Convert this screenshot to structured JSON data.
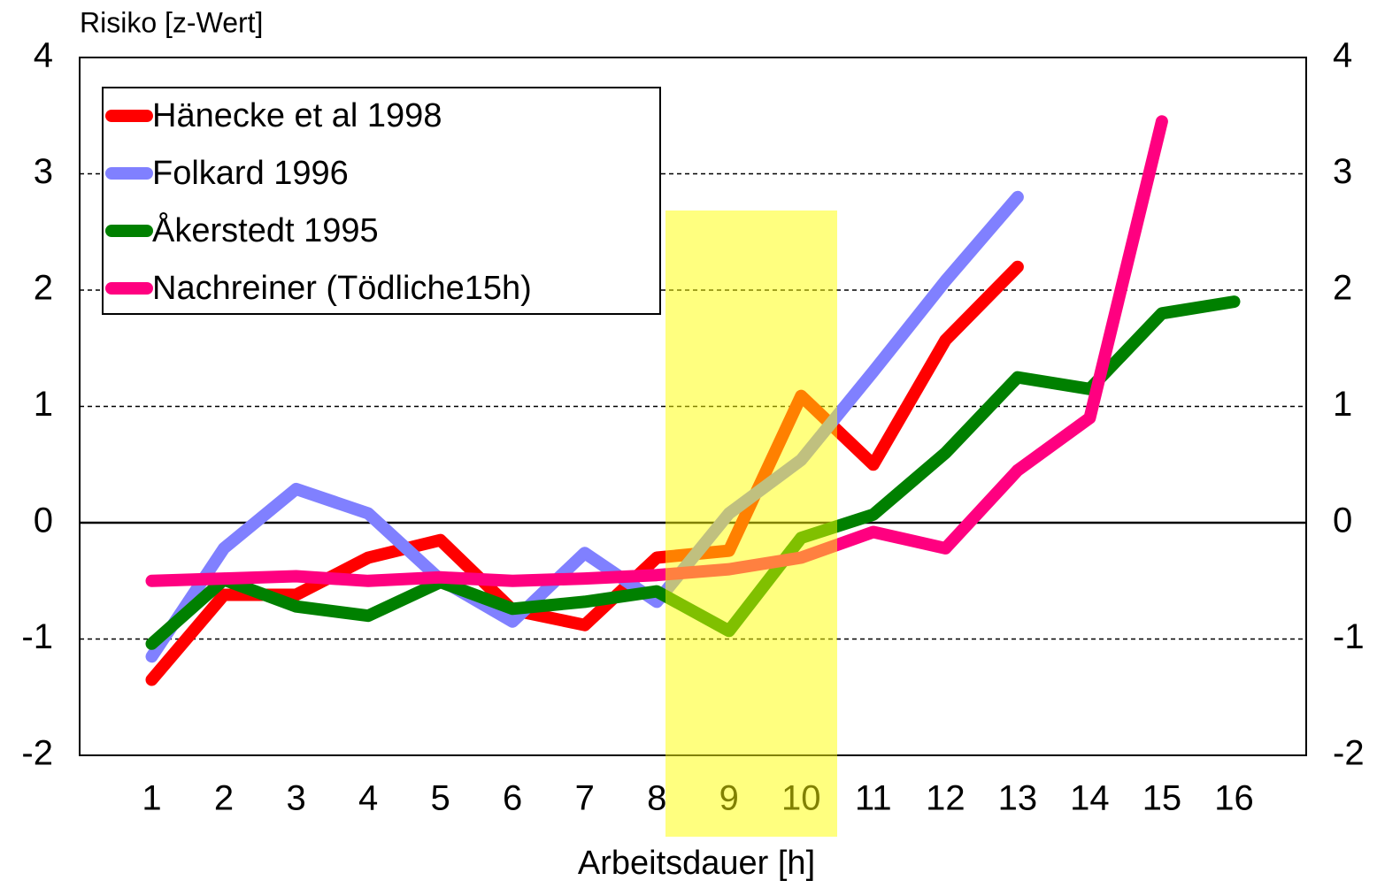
{
  "chart_data": {
    "type": "line",
    "y_label": "Risiko [z-Wert]",
    "x_label": "Arbeitsdauer [h]",
    "x": [
      1,
      2,
      3,
      4,
      5,
      6,
      7,
      8,
      9,
      10,
      11,
      12,
      13,
      14,
      15,
      16
    ],
    "xlim": [
      0,
      17
    ],
    "xticks": [
      1,
      2,
      3,
      4,
      5,
      6,
      7,
      8,
      9,
      10,
      11,
      12,
      13,
      14,
      15,
      16
    ],
    "ylim": [
      -2,
      4
    ],
    "yticks": [
      -2,
      -1,
      0,
      1,
      2,
      3,
      4
    ],
    "y2lim": [
      -2,
      4
    ],
    "y2ticks": [
      -2,
      -1,
      0,
      1,
      2,
      3,
      4
    ],
    "grid": true,
    "legend": "upper left",
    "series": [
      {
        "name": "Hänecke et al 1998",
        "color": "#ff0000",
        "values": [
          -1.35,
          -0.62,
          -0.62,
          -0.3,
          -0.15,
          -0.75,
          -0.88,
          -0.3,
          -0.24,
          1.09,
          0.5,
          1.57,
          2.2,
          null,
          null,
          null
        ]
      },
      {
        "name": "Folkard 1996",
        "color": "#8080ff",
        "values": [
          -1.15,
          -0.22,
          0.29,
          0.08,
          -0.49,
          -0.85,
          -0.26,
          -0.68,
          0.08,
          0.54,
          1.3,
          2.08,
          2.8,
          null,
          null,
          null
        ]
      },
      {
        "name": "Åkerstedt 1995",
        "color": "#008000",
        "values": [
          -1.04,
          -0.49,
          -0.72,
          -0.8,
          -0.51,
          -0.74,
          -0.68,
          -0.59,
          -0.93,
          -0.13,
          0.07,
          0.6,
          1.25,
          1.15,
          1.8,
          1.9
        ]
      },
      {
        "name": "Nachreiner (Tödliche15h)",
        "color": "#ff0080",
        "values": [
          -0.5,
          -0.48,
          -0.46,
          -0.5,
          -0.47,
          -0.5,
          -0.48,
          -0.45,
          -0.4,
          -0.3,
          -0.08,
          -0.22,
          0.45,
          0.9,
          3.45,
          null
        ]
      }
    ]
  }
}
